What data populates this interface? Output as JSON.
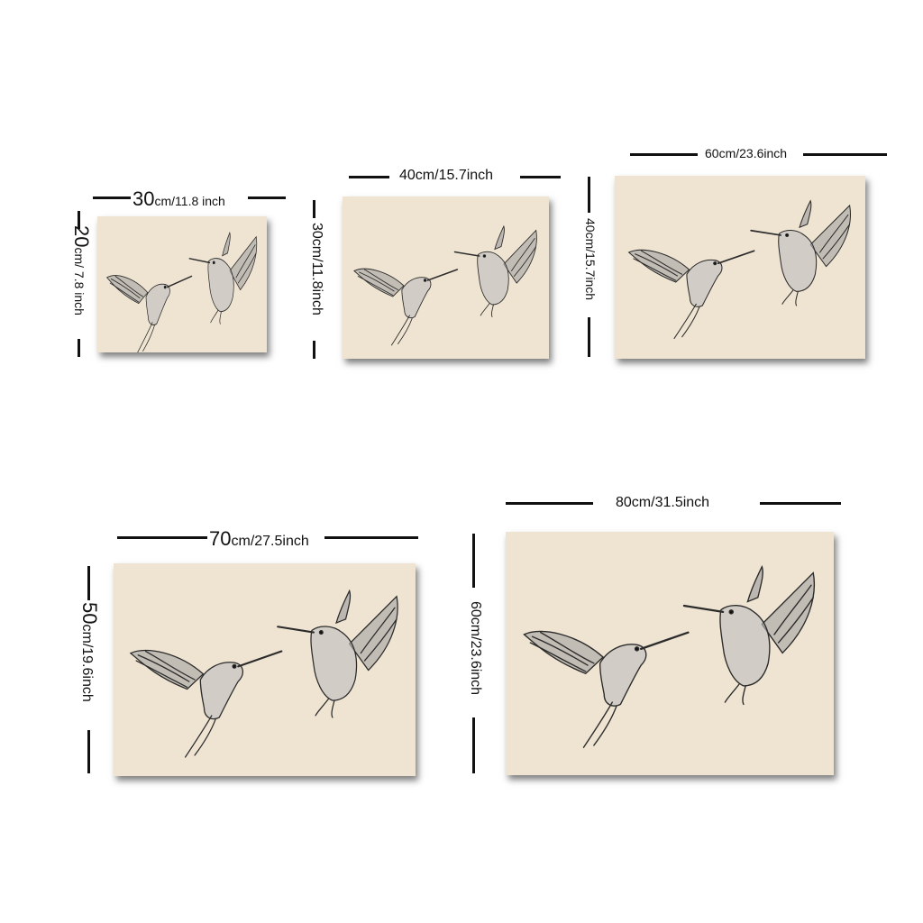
{
  "canvas_color": "#efe4d2",
  "ink_color": "#2b2b2b",
  "sizes": [
    {
      "width_num": "30",
      "width_unit": "cm/11.8 inch",
      "height_num": "20",
      "height_unit": "cm/ 7.8 inch"
    },
    {
      "width_label": "40cm/15.7inch",
      "height_label": "30cm/11.8inch"
    },
    {
      "width_label": "60cm/23.6inch",
      "height_label": "40cm/15.7inch"
    },
    {
      "width_num": "70",
      "width_unit": "cm/27.5inch",
      "height_num": "50",
      "height_unit": "cm/19.6inch"
    },
    {
      "width_label": "80cm/31.5inch",
      "height_label": "60cm/23.6inch"
    }
  ]
}
